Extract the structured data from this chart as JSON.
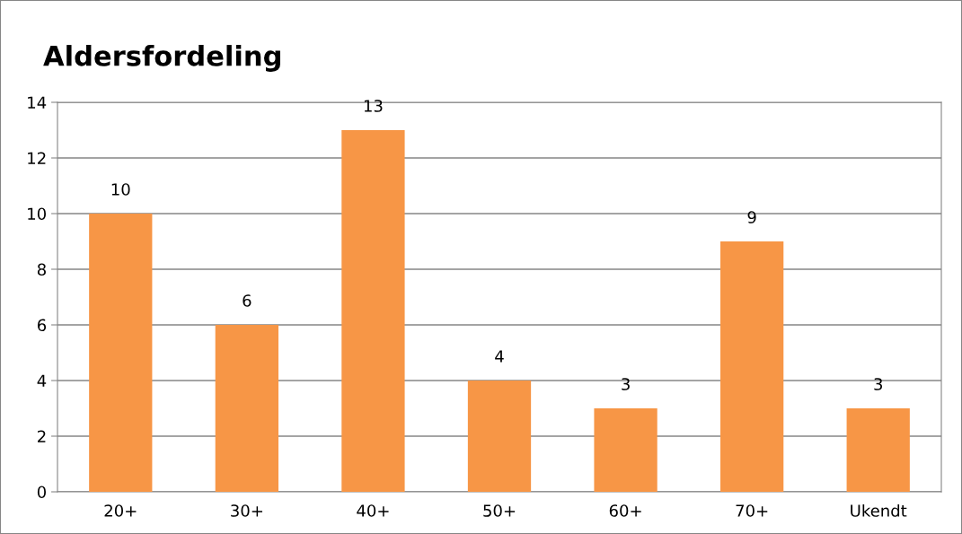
{
  "chart_data": {
    "type": "bar",
    "title": "Aldersfordeling",
    "categories": [
      "20+",
      "30+",
      "40+",
      "50+",
      "60+",
      "70+",
      "Ukendt"
    ],
    "values": [
      10,
      6,
      13,
      4,
      3,
      9,
      3
    ],
    "color": "#f79646",
    "ylim": [
      0,
      14
    ],
    "yticks": [
      0,
      2,
      4,
      6,
      8,
      10,
      12,
      14
    ],
    "grid": "y",
    "data_labels": true
  }
}
